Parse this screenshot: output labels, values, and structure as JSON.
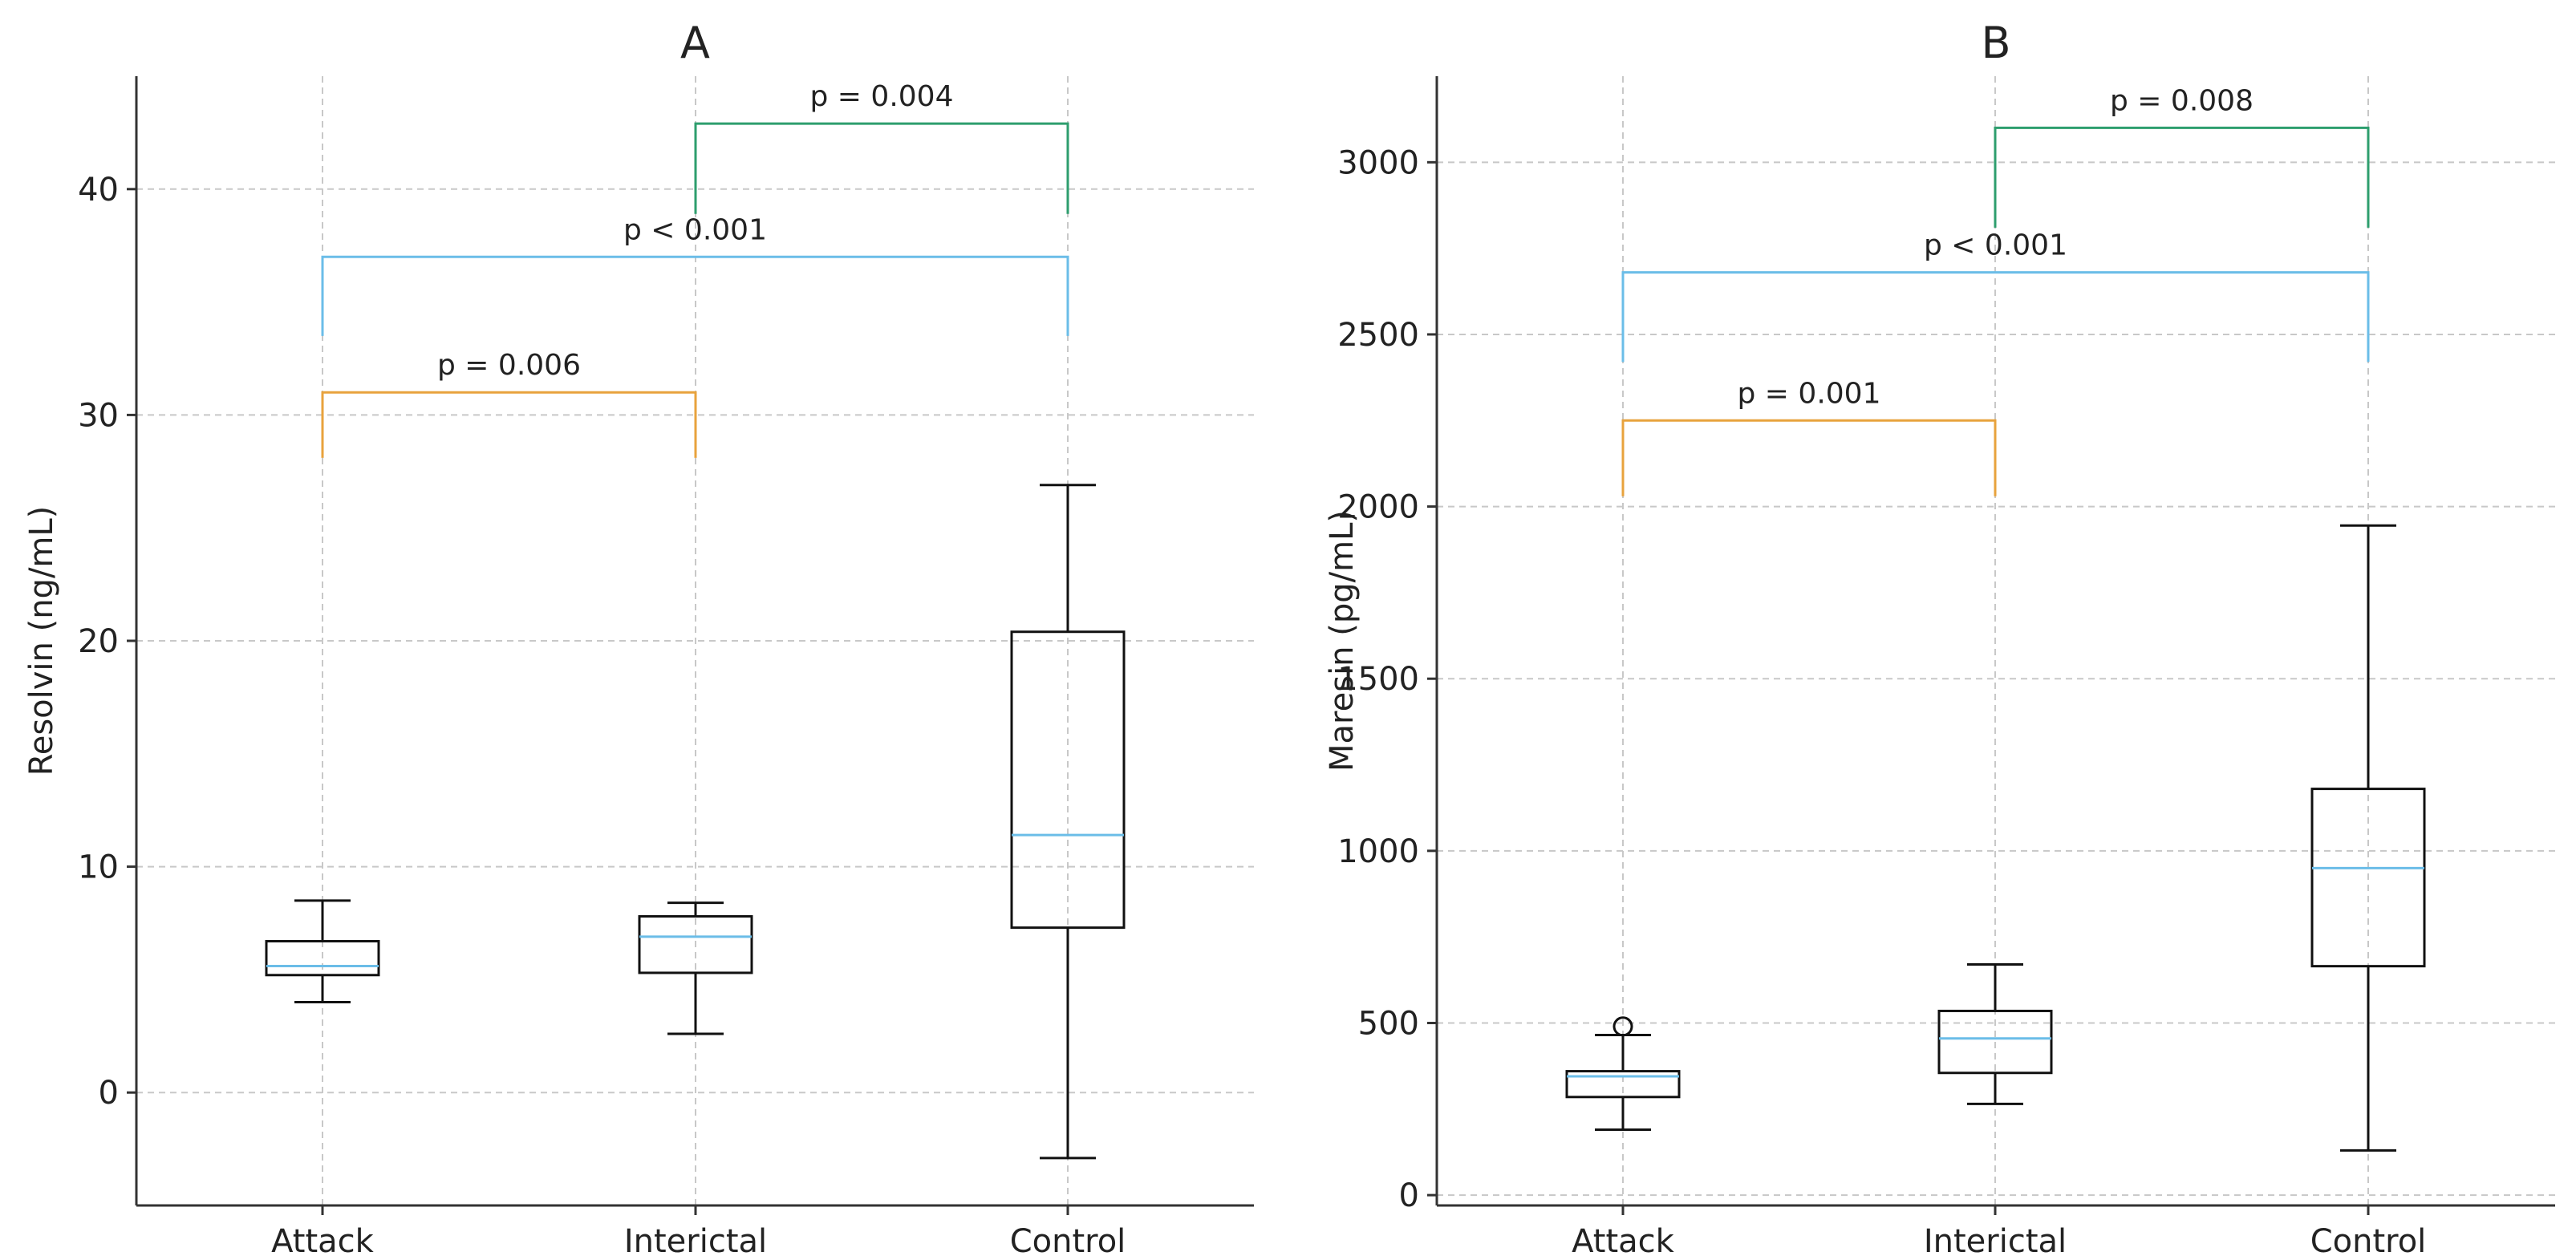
{
  "chart_data": [
    {
      "type": "box",
      "title": "A",
      "xlabel": "",
      "ylabel": "Resolvin (ng/mL)",
      "ylim": [
        -5,
        45
      ],
      "yticks": [
        0,
        10,
        20,
        30,
        40
      ],
      "grid": true,
      "categories": [
        "Attack",
        "Interictal",
        "Control"
      ],
      "boxes": [
        {
          "category": "Attack",
          "whisker_low": 4.0,
          "q1": 5.2,
          "median": 5.6,
          "q3": 6.7,
          "whisker_high": 8.5,
          "outliers": []
        },
        {
          "category": "Interictal",
          "whisker_low": 2.6,
          "q1": 5.3,
          "median": 6.9,
          "q3": 7.8,
          "whisker_high": 8.4,
          "outliers": []
        },
        {
          "category": "Control",
          "whisker_low": -2.9,
          "q1": 7.3,
          "median": 11.4,
          "q3": 20.4,
          "whisker_high": 26.9,
          "outliers": []
        }
      ],
      "comparisons": [
        {
          "from": "Attack",
          "to": "Interictal",
          "label": "p = 0.006",
          "y": 31,
          "drop": 28.1,
          "color": "#E8A33D"
        },
        {
          "from": "Attack",
          "to": "Control",
          "label": "p < 0.001",
          "y": 37,
          "drop": 33.5,
          "color": "#6BBDE8"
        },
        {
          "from": "Interictal",
          "to": "Control",
          "label": "p = 0.004",
          "y": 42.9,
          "drop": 38.9,
          "color": "#2E9E6E"
        }
      ]
    },
    {
      "type": "box",
      "title": "B",
      "xlabel": "",
      "ylabel": "Maresin (pg/mL)",
      "ylim": [
        -30,
        3250
      ],
      "yticks": [
        0,
        500,
        1000,
        1500,
        2000,
        2500,
        3000
      ],
      "grid": true,
      "categories": [
        "Attack",
        "Interictal",
        "Control"
      ],
      "boxes": [
        {
          "category": "Attack",
          "whisker_low": 190,
          "q1": 285,
          "median": 345,
          "q3": 360,
          "whisker_high": 465,
          "outliers": [
            490
          ]
        },
        {
          "category": "Interictal",
          "whisker_low": 265,
          "q1": 355,
          "median": 455,
          "q3": 535,
          "whisker_high": 670,
          "outliers": []
        },
        {
          "category": "Control",
          "whisker_low": 130,
          "q1": 665,
          "median": 950,
          "q3": 1180,
          "whisker_high": 1945,
          "outliers": []
        }
      ],
      "comparisons": [
        {
          "from": "Attack",
          "to": "Interictal",
          "label": "p = 0.001",
          "y": 2250,
          "drop": 2030,
          "color": "#E8A33D"
        },
        {
          "from": "Attack",
          "to": "Control",
          "label": "p < 0.001",
          "y": 2680,
          "drop": 2420,
          "color": "#6BBDE8"
        },
        {
          "from": "Interictal",
          "to": "Control",
          "label": "p = 0.008",
          "y": 3100,
          "drop": 2810,
          "color": "#2E9E6E"
        }
      ]
    }
  ],
  "colors": {
    "box": "#111111",
    "median": "#6BBDE8",
    "grid": "#c8c8c8",
    "axis": "#333333"
  }
}
